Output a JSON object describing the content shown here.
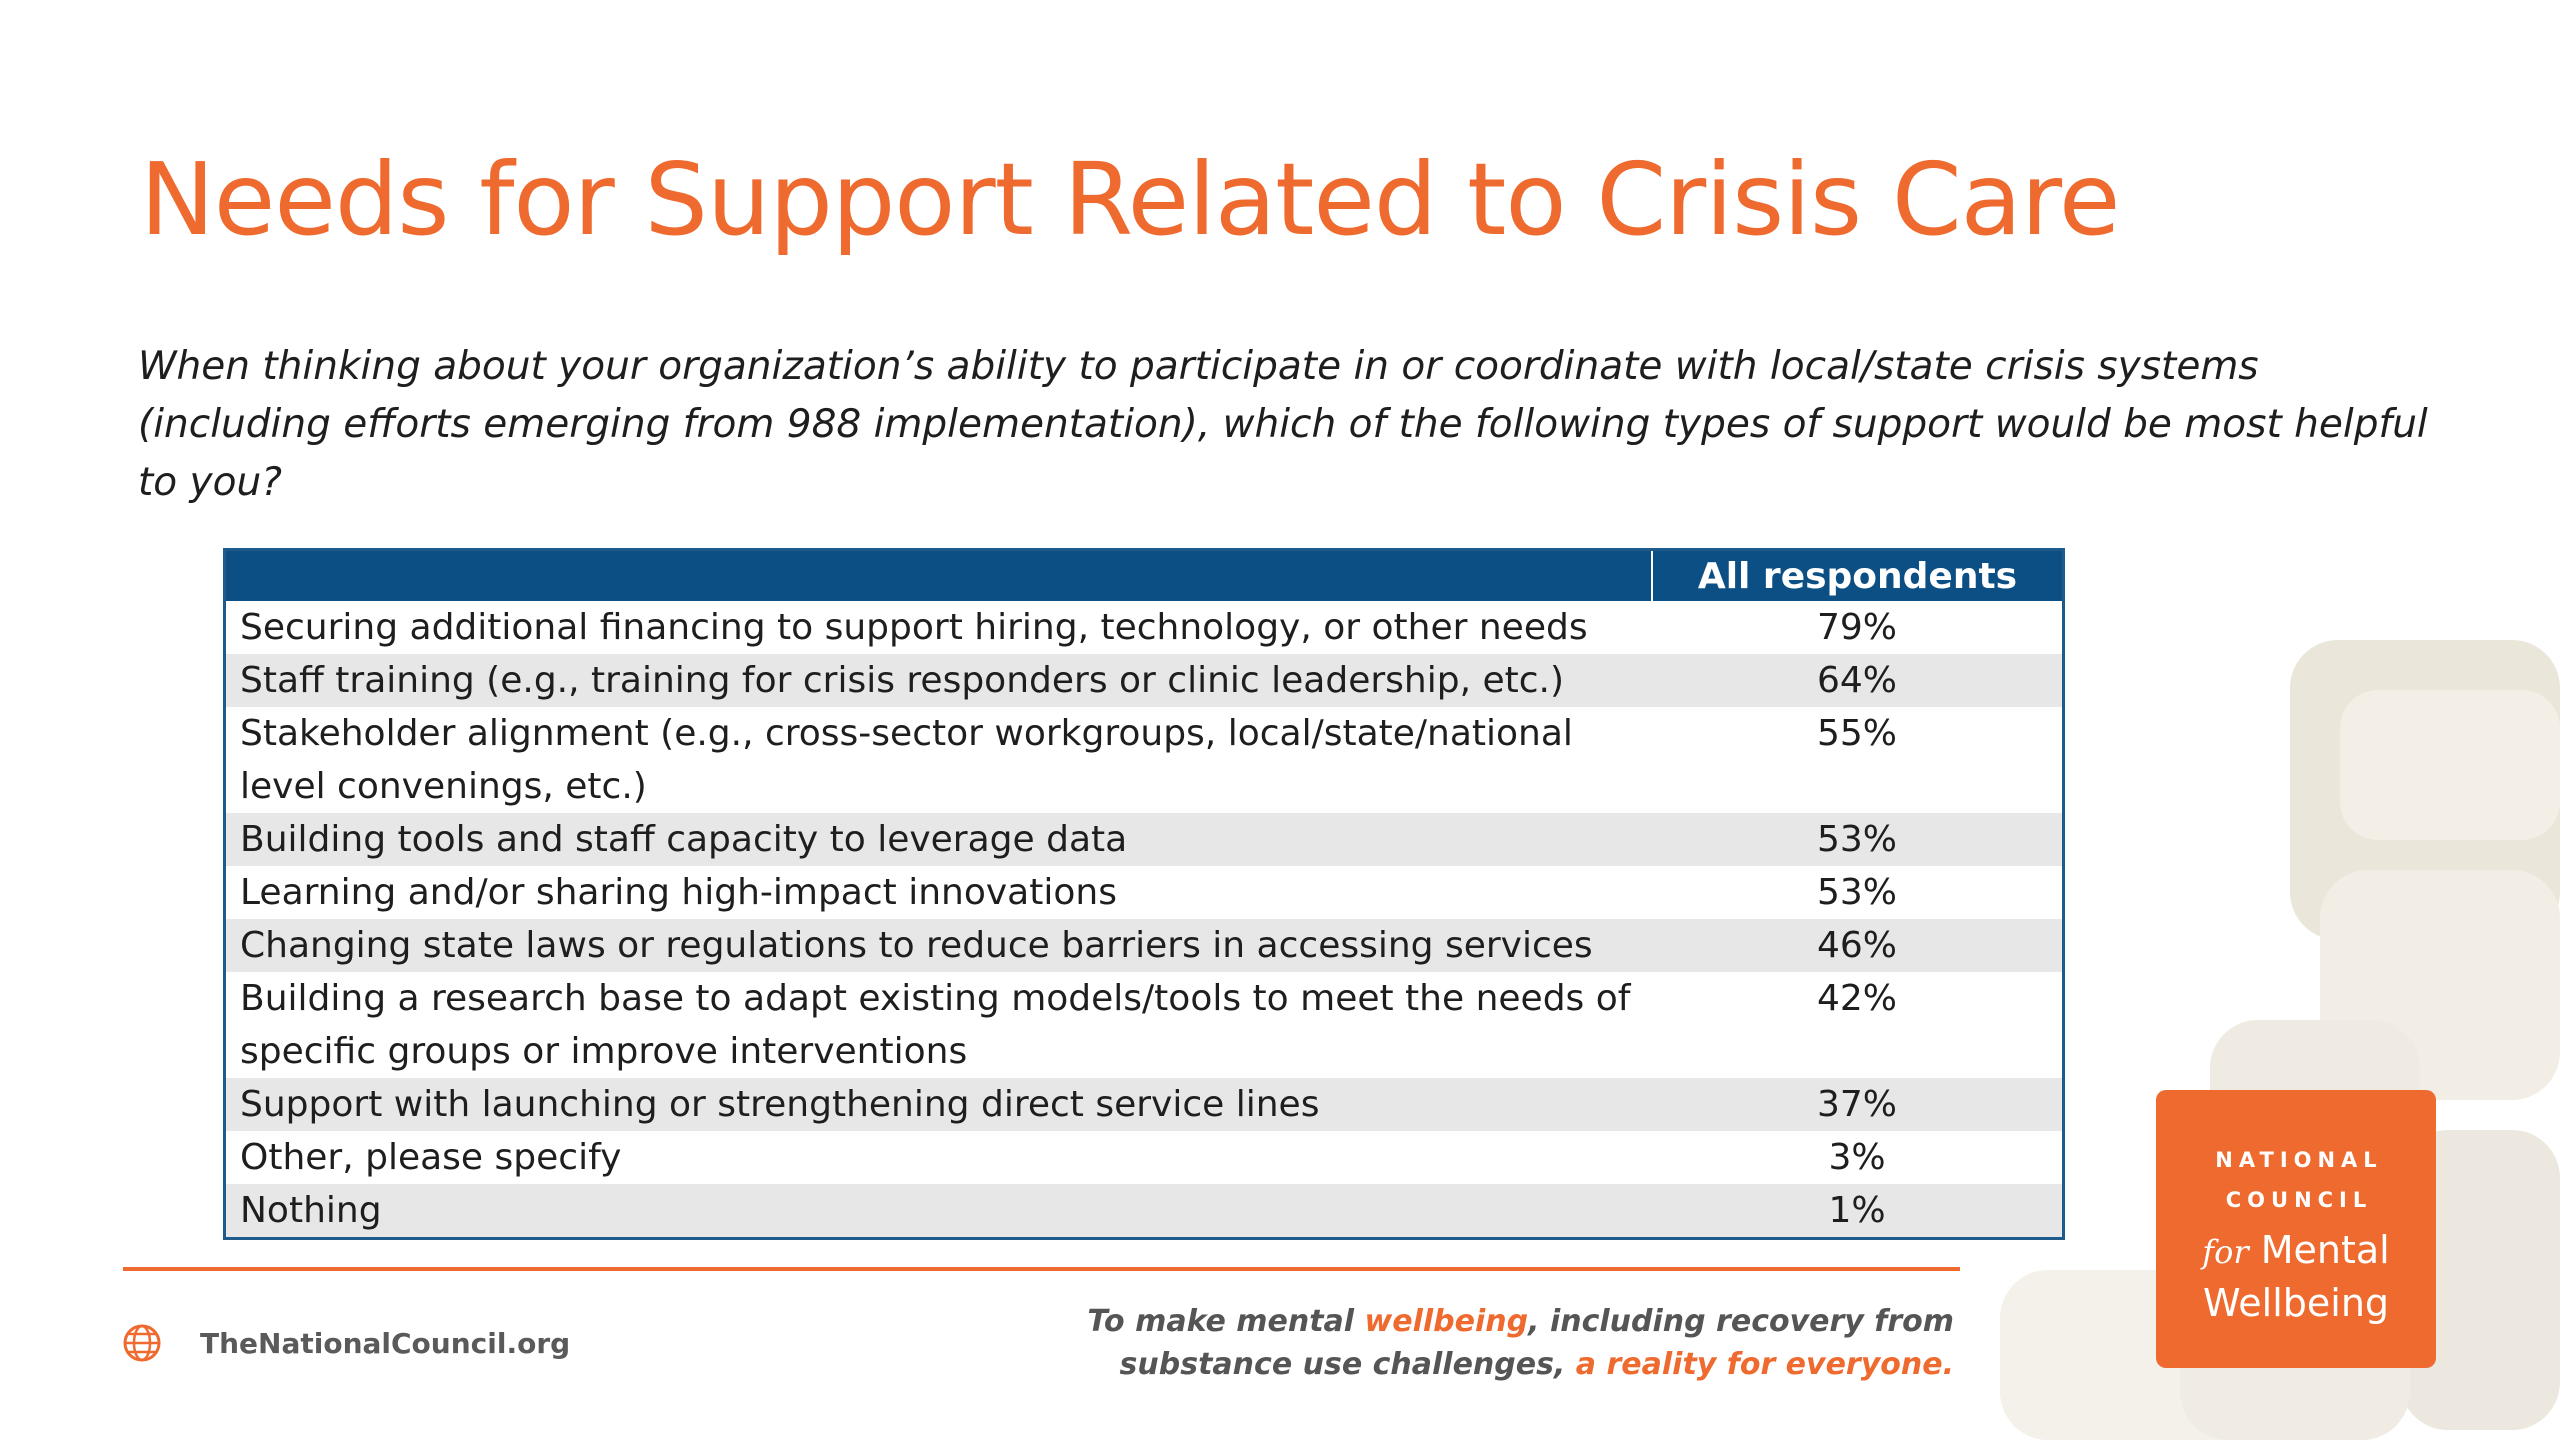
{
  "title": "Needs for Support Related to Crisis Care",
  "question": "When thinking about your organization’s ability to participate in or coordinate with local/state crisis systems (including efforts emerging from 988 implementation), which of the following types of support would be most helpful to you?",
  "table": {
    "header_col1": "",
    "header_col2": "All respondents",
    "rows": [
      {
        "label": "Securing additional financing to support hiring, technology, or other needs",
        "value": "79%"
      },
      {
        "label": "Staff training (e.g., training for crisis responders or clinic leadership, etc.)",
        "value": "64%"
      },
      {
        "label": "Stakeholder alignment (e.g., cross-sector workgroups, local/state/national level convenings, etc.)",
        "value": "55%"
      },
      {
        "label": "Building tools and staff capacity to leverage data",
        "value": "53%"
      },
      {
        "label": "Learning and/or sharing high-impact innovations",
        "value": "53%"
      },
      {
        "label": "Changing state laws or regulations to reduce barriers in accessing services",
        "value": "46%"
      },
      {
        "label": "Building a research base to adapt existing models/tools to meet the needs of specific groups or improve interventions",
        "value": "42%"
      },
      {
        "label": "Support with launching or strengthening direct service lines",
        "value": "37%"
      },
      {
        "label": "Other, please specify",
        "value": "3%"
      },
      {
        "label": "Nothing",
        "value": "1%"
      }
    ]
  },
  "footer": {
    "site": "TheNationalCouncil.org",
    "tagline_part1": "To make mental ",
    "tagline_accent1": "wellbeing",
    "tagline_part2": ", including recovery from",
    "tagline_part3": "substance use challenges, ",
    "tagline_accent2": "a reality for everyone."
  },
  "logo": {
    "line1": "NATIONAL",
    "line2": "COUNCIL",
    "line3_for": "for",
    "line3_word": "Mental",
    "line4": "Wellbeing"
  },
  "colors": {
    "brand_orange": "#ee6a2f",
    "table_header_blue": "#0b4f84",
    "row_shade": "#e7e7e7"
  },
  "icons": {
    "site": "globe-icon"
  }
}
